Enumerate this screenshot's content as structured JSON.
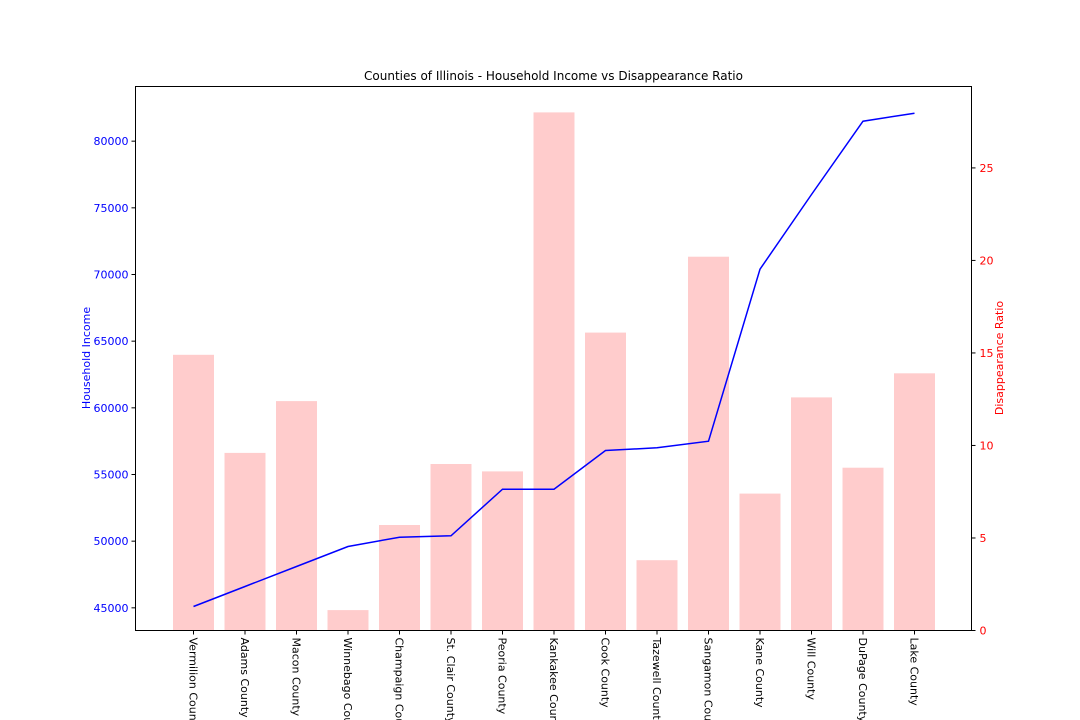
{
  "chart_data": {
    "type": "bar+line",
    "title": "Counties of Illinois - Household Income vs Disappearance Ratio",
    "categories": [
      "Vermilion County",
      "Adams County",
      "Macon County",
      "Winnebago County",
      "Champaign County",
      "St. Clair County",
      "Peoria County",
      "Kankakee County",
      "Cook County",
      "Tazewell County",
      "Sangamon County",
      "Kane County",
      "Will County",
      "DuPage County",
      "Lake County"
    ],
    "line_series": {
      "axis": "left",
      "ylabel": "Household Income",
      "color": "#0000ff",
      "values": [
        45100,
        46600,
        48100,
        49600,
        50300,
        50400,
        53900,
        53900,
        56800,
        57000,
        57500,
        70400,
        76000,
        81500,
        82100
      ]
    },
    "bar_series": {
      "axis": "right",
      "ylabel": "Disappearance Ratio",
      "color": "#ffcccc",
      "values": [
        14.9,
        9.6,
        12.4,
        1.1,
        5.7,
        9.0,
        8.6,
        28.0,
        16.1,
        3.8,
        20.2,
        7.4,
        12.6,
        8.8,
        13.9
      ]
    },
    "y_left": {
      "ylim": [
        43300,
        84100
      ],
      "ticks": [
        "45000",
        "50000",
        "55000",
        "60000",
        "65000",
        "70000",
        "75000",
        "80000"
      ],
      "color": "#0000ff"
    },
    "y_right": {
      "ylim": [
        0,
        29.4
      ],
      "ticks": [
        "0",
        "5",
        "10",
        "15",
        "20",
        "25"
      ],
      "color": "#ff0000"
    },
    "grid": false,
    "legend": "none"
  }
}
